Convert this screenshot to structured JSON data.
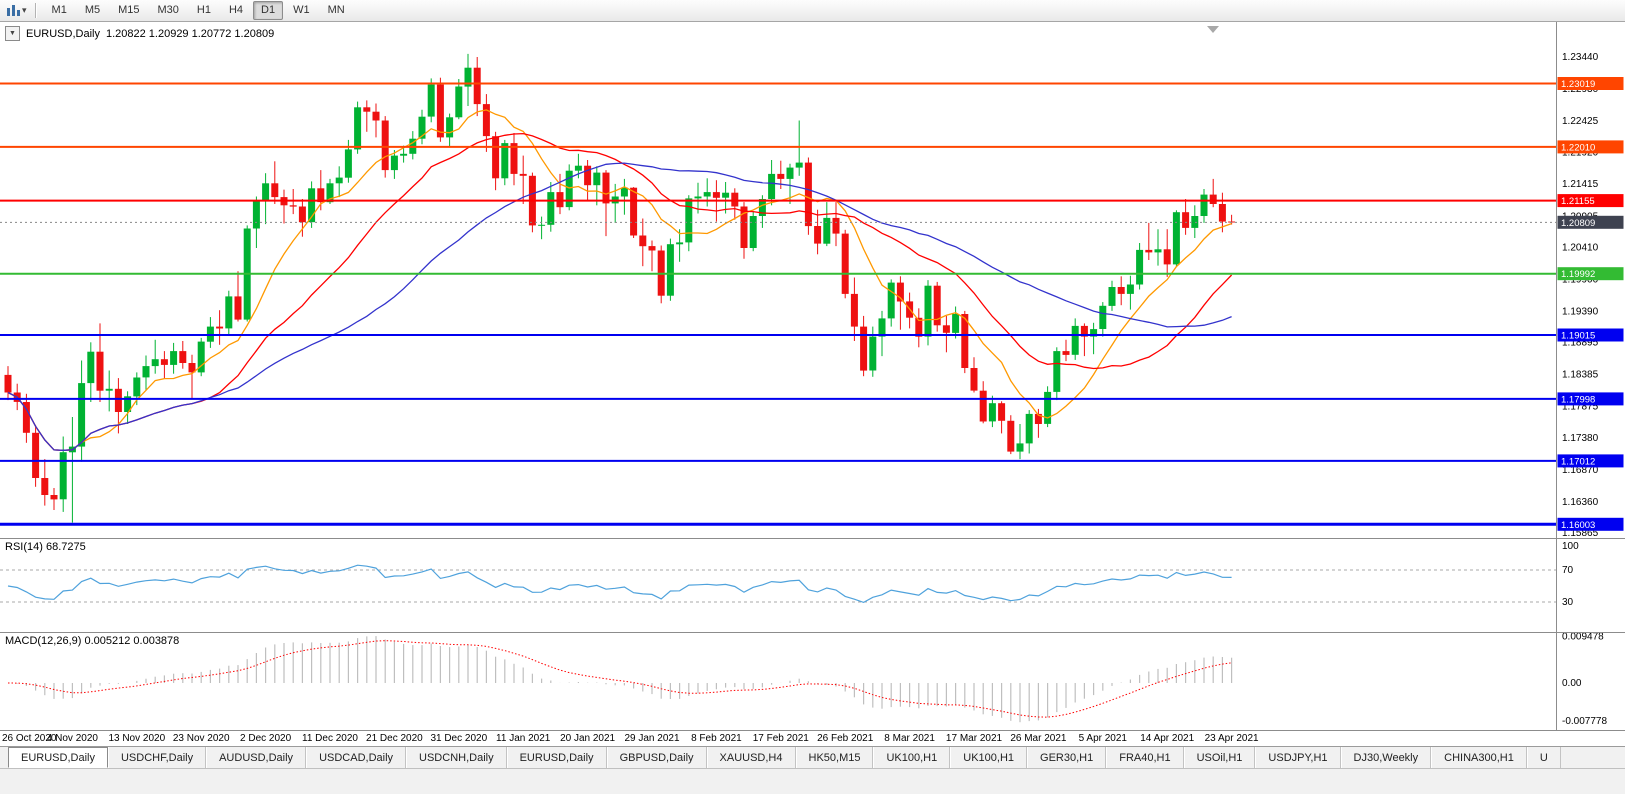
{
  "toolbar": {
    "timeframes": [
      "M1",
      "M5",
      "M15",
      "M30",
      "H1",
      "H4",
      "D1",
      "W1",
      "MN"
    ],
    "active_timeframe": "D1"
  },
  "window_tabs": {
    "active_index": 0,
    "items": [
      "EURUSD,Daily",
      "USDCHF,Daily",
      "AUDUSD,Daily",
      "USDCAD,Daily",
      "USDCNH,Daily",
      "EURUSD,Daily",
      "GBPUSD,Daily",
      "XAUUSD,H4",
      "HK50,M15",
      "UK100,H1",
      "UK100,H1",
      "GER30,H1",
      "FRA40,H1",
      "USOil,H1",
      "USDJPY,H1",
      "DJ30,Weekly",
      "CHINA300,H1",
      "U"
    ]
  },
  "chart_data": {
    "type": "candlestick",
    "symbol": "EURUSD,Daily",
    "quote_text": "1.20822 1.20929 1.20772 1.20809",
    "ohlc_current": {
      "open": 1.20822,
      "high": 1.20929,
      "low": 1.20772,
      "close": 1.20809
    },
    "price_axis": {
      "top_price": 1.23997,
      "bottom_price": 1.15785,
      "ticks": [
        "1.23440",
        "1.22930",
        "1.22425",
        "1.21920",
        "1.21415",
        "1.20905",
        "1.20410",
        "1.19900",
        "1.19390",
        "1.18895",
        "1.18385",
        "1.17875",
        "1.17380",
        "1.16870",
        "1.16360",
        "1.15865"
      ]
    },
    "x_labels": [
      "26 Oct 2020",
      "4 Nov 2020",
      "13 Nov 2020",
      "23 Nov 2020",
      "2 Dec 2020",
      "11 Dec 2020",
      "21 Dec 2020",
      "31 Dec 2020",
      "11 Jan 2021",
      "20 Jan 2021",
      "29 Jan 2021",
      "8 Feb 2021",
      "17 Feb 2021",
      "26 Feb 2021",
      "8 Mar 2021",
      "17 Mar 2021",
      "26 Mar 2021",
      "5 Apr 2021",
      "14 Apr 2021",
      "23 Apr 2021"
    ],
    "x_label_step": 7,
    "colors": {
      "bull": "#00B232",
      "bear": "#EE1111"
    },
    "horizontal_levels": [
      {
        "price": 1.23019,
        "label": "1.23019",
        "color": "#FF4500",
        "width": 2
      },
      {
        "price": 1.2201,
        "label": "1.22010",
        "color": "#FF4500",
        "width": 2
      },
      {
        "price": 1.21155,
        "label": "1.21155",
        "color": "#FF0000",
        "width": 2
      },
      {
        "price": 1.19992,
        "label": "1.19992",
        "color": "#33BB33",
        "width": 2
      },
      {
        "price": 1.19015,
        "label": "1.19015",
        "color": "#0000F0",
        "width": 2
      },
      {
        "price": 1.17998,
        "label": "1.17998",
        "color": "#0000F0",
        "width": 2
      },
      {
        "price": 1.17012,
        "label": "1.17012",
        "color": "#0000F0",
        "width": 2
      },
      {
        "price": 1.16003,
        "label": "1.16003",
        "color": "#0000F0",
        "width": 3
      }
    ],
    "current_price": {
      "value": 1.20809,
      "label": "1.20809",
      "badge_color": "#3E4250"
    },
    "moving_averages": [
      {
        "name": "fast",
        "period": 9,
        "color": "#FF9900"
      },
      {
        "name": "medium",
        "period": 21,
        "color": "#FF0000"
      },
      {
        "name": "slow",
        "period": 40,
        "color": "#3333CC"
      }
    ],
    "rsi": {
      "label": "RSI(14) 68.7275",
      "period": 14,
      "value": 68.7275,
      "levels": [
        100,
        70,
        30
      ],
      "color": "#4FA2DC"
    },
    "macd": {
      "label": "MACD(12,26,9) 0.005212 0.003878",
      "fast": 12,
      "slow": 26,
      "signal_period": 9,
      "value": 0.005212,
      "signal_value": 0.003878,
      "scale_labels": [
        "0.009478",
        "0.00",
        "-0.007778"
      ],
      "axis_top": 0.009478,
      "axis_bottom": -0.007778,
      "hist_color": "#BFBFBF",
      "signal_color": "#FF0000"
    },
    "candles": [
      [
        1.1838,
        1.1852,
        1.1798,
        1.181
      ],
      [
        1.181,
        1.1824,
        1.1782,
        1.1795
      ],
      [
        1.1795,
        1.1808,
        1.173,
        1.1746
      ],
      [
        1.1746,
        1.1758,
        1.166,
        1.1674
      ],
      [
        1.1674,
        1.1704,
        1.163,
        1.1647
      ],
      [
        1.1647,
        1.1658,
        1.1623,
        1.164
      ],
      [
        1.164,
        1.174,
        1.162,
        1.1715
      ],
      [
        1.1715,
        1.1771,
        1.1603,
        1.1724
      ],
      [
        1.1724,
        1.1861,
        1.17,
        1.1825
      ],
      [
        1.1825,
        1.189,
        1.1795,
        1.1875
      ],
      [
        1.1875,
        1.192,
        1.1795,
        1.1813
      ],
      [
        1.1813,
        1.1845,
        1.178,
        1.1816
      ],
      [
        1.1816,
        1.1833,
        1.1745,
        1.1779
      ],
      [
        1.1779,
        1.1812,
        1.176,
        1.1804
      ],
      [
        1.1804,
        1.1842,
        1.179,
        1.1834
      ],
      [
        1.1834,
        1.1869,
        1.1814,
        1.1852
      ],
      [
        1.1852,
        1.1894,
        1.184,
        1.1863
      ],
      [
        1.1863,
        1.1876,
        1.1832,
        1.1854
      ],
      [
        1.1854,
        1.1889,
        1.184,
        1.1876
      ],
      [
        1.1876,
        1.1892,
        1.1848,
        1.1857
      ],
      [
        1.1857,
        1.187,
        1.18,
        1.1842
      ],
      [
        1.1842,
        1.1897,
        1.1836,
        1.1891
      ],
      [
        1.1891,
        1.193,
        1.1881,
        1.1915
      ],
      [
        1.1915,
        1.1941,
        1.1886,
        1.1912
      ],
      [
        1.1912,
        1.1972,
        1.1902,
        1.1963
      ],
      [
        1.1963,
        1.2003,
        1.1923,
        1.1926
      ],
      [
        1.1926,
        1.2076,
        1.1923,
        1.2071
      ],
      [
        1.2071,
        1.2122,
        1.204,
        1.2115
      ],
      [
        1.2115,
        1.2159,
        1.2078,
        1.2143
      ],
      [
        1.2143,
        1.2178,
        1.211,
        1.2121
      ],
      [
        1.2121,
        1.2133,
        1.2079,
        1.2108
      ],
      [
        1.2108,
        1.2134,
        1.2094,
        1.2106
      ],
      [
        1.2106,
        1.2118,
        1.2058,
        1.2081
      ],
      [
        1.2081,
        1.2146,
        1.2072,
        1.2135
      ],
      [
        1.2135,
        1.2164,
        1.21,
        1.2113
      ],
      [
        1.2113,
        1.215,
        1.211,
        1.2143
      ],
      [
        1.2143,
        1.217,
        1.2121,
        1.2152
      ],
      [
        1.2152,
        1.2212,
        1.2144,
        1.2197
      ],
      [
        1.2197,
        1.2273,
        1.219,
        1.2264
      ],
      [
        1.2264,
        1.2275,
        1.2225,
        1.2257
      ],
      [
        1.2257,
        1.227,
        1.2216,
        1.2243
      ],
      [
        1.2243,
        1.225,
        1.2152,
        1.2164
      ],
      [
        1.2164,
        1.2196,
        1.215,
        1.2187
      ],
      [
        1.2187,
        1.2203,
        1.2176,
        1.219
      ],
      [
        1.219,
        1.2226,
        1.2181,
        1.2214
      ],
      [
        1.2214,
        1.226,
        1.2205,
        1.2249
      ],
      [
        1.2249,
        1.231,
        1.224,
        1.23
      ],
      [
        1.23,
        1.2311,
        1.2209,
        1.2216
      ],
      [
        1.2216,
        1.2254,
        1.22,
        1.2248
      ],
      [
        1.2248,
        1.2309,
        1.2245,
        1.2297
      ],
      [
        1.2297,
        1.2349,
        1.2266,
        1.2327
      ],
      [
        1.2327,
        1.2344,
        1.225,
        1.2269
      ],
      [
        1.2269,
        1.2285,
        1.2193,
        1.2218
      ],
      [
        1.2218,
        1.2225,
        1.2132,
        1.2151
      ],
      [
        1.2151,
        1.2212,
        1.214,
        1.2207
      ],
      [
        1.2207,
        1.2223,
        1.214,
        1.2158
      ],
      [
        1.2158,
        1.2187,
        1.211,
        1.2155
      ],
      [
        1.2155,
        1.216,
        1.2065,
        1.2076
      ],
      [
        1.2076,
        1.209,
        1.2054,
        1.2077
      ],
      [
        1.2077,
        1.2145,
        1.2066,
        1.2129
      ],
      [
        1.2129,
        1.2158,
        1.2094,
        1.2105
      ],
      [
        1.2105,
        1.2173,
        1.21,
        1.2163
      ],
      [
        1.2163,
        1.219,
        1.2151,
        1.2171
      ],
      [
        1.2171,
        1.218,
        1.2116,
        1.214
      ],
      [
        1.214,
        1.217,
        1.2108,
        1.216
      ],
      [
        1.216,
        1.2164,
        1.2059,
        1.2111
      ],
      [
        1.2111,
        1.2142,
        1.208,
        1.2122
      ],
      [
        1.2122,
        1.215,
        1.2093,
        1.2136
      ],
      [
        1.2136,
        1.2137,
        1.2056,
        1.206
      ],
      [
        1.206,
        1.2087,
        1.2011,
        1.2043
      ],
      [
        1.2043,
        1.2052,
        1.2003,
        1.2036
      ],
      [
        1.2036,
        1.2044,
        1.1952,
        1.1964
      ],
      [
        1.1964,
        1.2055,
        1.1956,
        1.2046
      ],
      [
        1.2046,
        1.207,
        1.2018,
        1.2049
      ],
      [
        1.2049,
        1.2124,
        1.2035,
        1.2119
      ],
      [
        1.2119,
        1.2144,
        1.2095,
        1.2122
      ],
      [
        1.2122,
        1.2151,
        1.2106,
        1.2129
      ],
      [
        1.2129,
        1.2148,
        1.2082,
        1.212
      ],
      [
        1.212,
        1.2145,
        1.2095,
        1.2128
      ],
      [
        1.2128,
        1.2135,
        1.2085,
        1.2106
      ],
      [
        1.2106,
        1.2113,
        1.2023,
        1.204
      ],
      [
        1.204,
        1.2098,
        1.2035,
        1.2091
      ],
      [
        1.2091,
        1.2124,
        1.2072,
        1.2118
      ],
      [
        1.2118,
        1.218,
        1.2108,
        1.2158
      ],
      [
        1.2158,
        1.2179,
        1.2134,
        1.215
      ],
      [
        1.215,
        1.2174,
        1.211,
        1.2168
      ],
      [
        1.2168,
        1.2243,
        1.2155,
        1.2176
      ],
      [
        1.2176,
        1.2184,
        1.2061,
        1.2075
      ],
      [
        1.2075,
        1.2101,
        1.203,
        1.2047
      ],
      [
        1.2047,
        1.2113,
        1.2043,
        1.2088
      ],
      [
        1.2088,
        1.2113,
        1.2043,
        1.2063
      ],
      [
        1.2063,
        1.2069,
        1.196,
        1.1967
      ],
      [
        1.1967,
        1.1993,
        1.1892,
        1.1915
      ],
      [
        1.1915,
        1.1932,
        1.1836,
        1.1845
      ],
      [
        1.1845,
        1.1915,
        1.1835,
        1.1899
      ],
      [
        1.1899,
        1.194,
        1.1868,
        1.1928
      ],
      [
        1.1928,
        1.199,
        1.1915,
        1.1985
      ],
      [
        1.1985,
        1.1995,
        1.191,
        1.1955
      ],
      [
        1.1955,
        1.1969,
        1.1912,
        1.1929
      ],
      [
        1.1929,
        1.1944,
        1.1882,
        1.1899
      ],
      [
        1.1899,
        1.1989,
        1.1885,
        1.198
      ],
      [
        1.198,
        1.1986,
        1.1907,
        1.1917
      ],
      [
        1.1917,
        1.1932,
        1.1874,
        1.1905
      ],
      [
        1.1905,
        1.1947,
        1.1896,
        1.1935
      ],
      [
        1.1935,
        1.194,
        1.1841,
        1.1849
      ],
      [
        1.1849,
        1.1866,
        1.181,
        1.1813
      ],
      [
        1.1813,
        1.1828,
        1.1761,
        1.1764
      ],
      [
        1.1764,
        1.1805,
        1.1755,
        1.1793
      ],
      [
        1.1793,
        1.1796,
        1.1745,
        1.1765
      ],
      [
        1.1765,
        1.1774,
        1.1712,
        1.1716
      ],
      [
        1.1716,
        1.176,
        1.1704,
        1.1729
      ],
      [
        1.1729,
        1.1782,
        1.1713,
        1.1776
      ],
      [
        1.1776,
        1.1784,
        1.1738,
        1.176
      ],
      [
        1.176,
        1.182,
        1.1755,
        1.1811
      ],
      [
        1.1811,
        1.1882,
        1.1798,
        1.1876
      ],
      [
        1.1876,
        1.1894,
        1.186,
        1.187
      ],
      [
        1.187,
        1.1928,
        1.1862,
        1.1916
      ],
      [
        1.1916,
        1.192,
        1.1868,
        1.1899
      ],
      [
        1.1899,
        1.1921,
        1.1871,
        1.1911
      ],
      [
        1.1911,
        1.1954,
        1.1899,
        1.1948
      ],
      [
        1.1948,
        1.1988,
        1.194,
        1.1978
      ],
      [
        1.1978,
        1.1995,
        1.1949,
        1.1967
      ],
      [
        1.1967,
        1.1996,
        1.1942,
        1.1982
      ],
      [
        1.1982,
        1.2048,
        1.1974,
        1.2037
      ],
      [
        1.2037,
        1.208,
        1.2021,
        1.2033
      ],
      [
        1.2033,
        1.207,
        1.2012,
        1.2038
      ],
      [
        1.2038,
        1.207,
        1.1994,
        1.2014
      ],
      [
        1.2014,
        1.21,
        1.201,
        1.2097
      ],
      [
        1.2097,
        1.2118,
        1.2061,
        1.2072
      ],
      [
        1.2072,
        1.2108,
        1.2056,
        1.2091
      ],
      [
        1.2091,
        1.2134,
        1.208,
        1.2125
      ],
      [
        1.2125,
        1.215,
        1.2105,
        1.211
      ],
      [
        1.211,
        1.2128,
        1.2065,
        1.2082
      ],
      [
        1.20822,
        1.20929,
        1.20772,
        1.20809
      ]
    ]
  }
}
